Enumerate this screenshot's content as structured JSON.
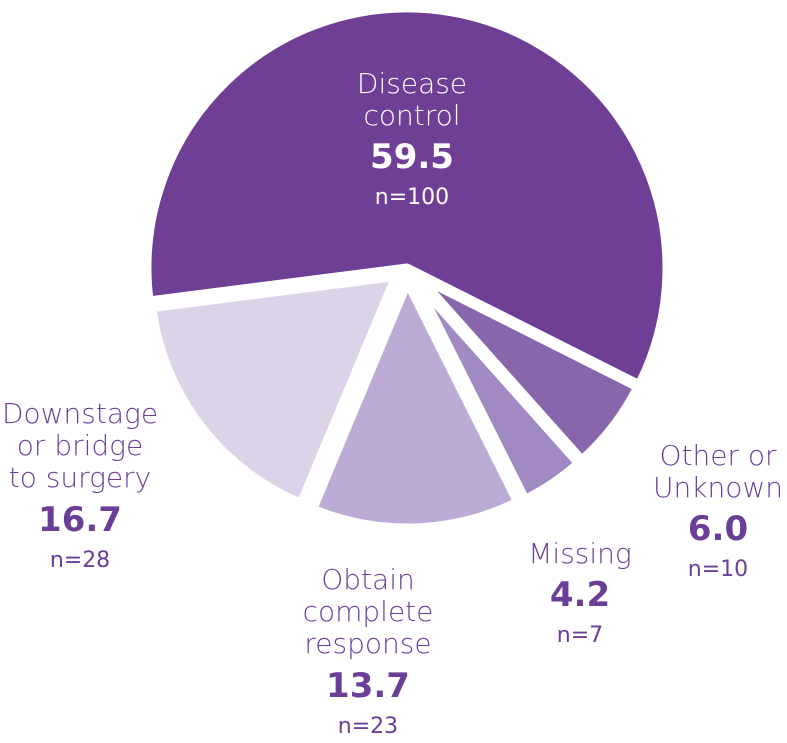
{
  "chart_data": {
    "type": "pie",
    "title": "",
    "slices": [
      {
        "label": "Disease control",
        "label_lines": [
          "Disease",
          "control"
        ],
        "value": 59.5,
        "n": "n=100",
        "color": "#6f3f96"
      },
      {
        "label": "Other or Unknown",
        "label_lines": [
          "Other or",
          "Unknown"
        ],
        "value": 6.0,
        "n": "n=10",
        "color": "#8766ab"
      },
      {
        "label": "Missing",
        "label_lines": [
          "Missing"
        ],
        "value": 4.2,
        "n": "n=7",
        "color": "#a189c1"
      },
      {
        "label": "Obtain complete response",
        "label_lines": [
          "Obtain",
          "complete",
          "response"
        ],
        "value": 13.7,
        "n": "n=23",
        "color": "#bcabd5"
      },
      {
        "label": "Downstage or bridge to surgery",
        "label_lines": [
          "Downstage",
          "or bridge",
          "to surgery"
        ],
        "value": 16.7,
        "n": "n=28",
        "color": "#dcd3e8"
      }
    ],
    "value_format": "0.0",
    "text_color": "#6b3f98",
    "legend": "none"
  }
}
